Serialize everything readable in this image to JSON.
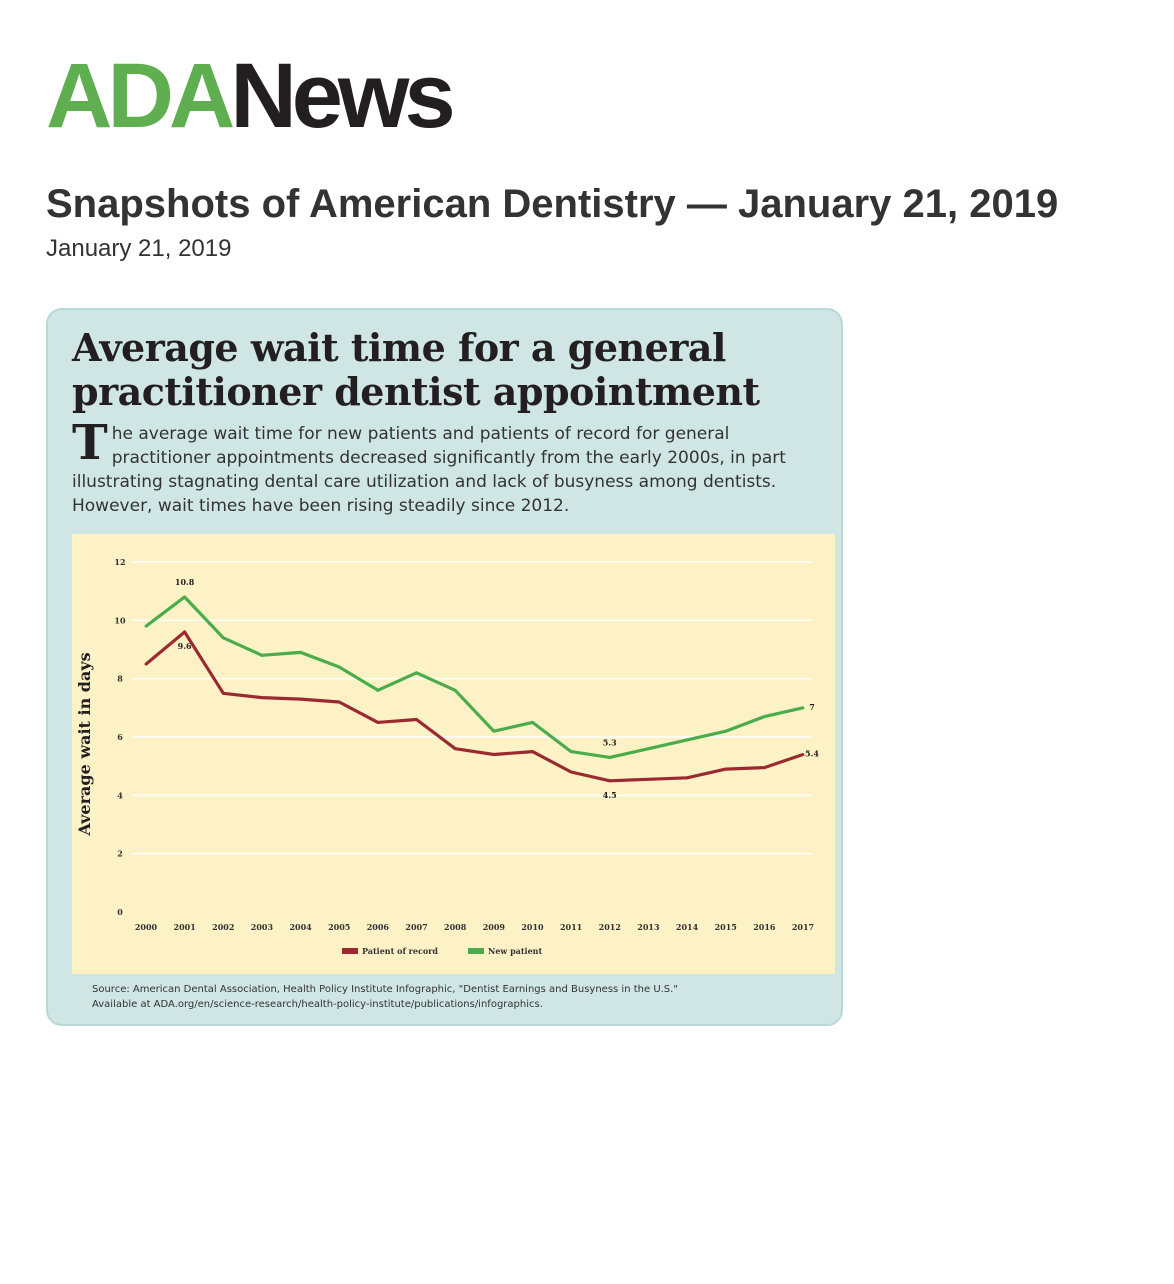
{
  "logo": {
    "part1": "ADA",
    "part2": "News"
  },
  "article": {
    "headline": "Snapshots of American Dentistry — January 21, 2019",
    "date": "January 21, 2019"
  },
  "infographic": {
    "title": "Average wait time for a general practitioner dentist appointment",
    "dropcap": "T",
    "description": "he average wait time for new patients and patients of record for general practitioner appointments decreased significantly from the early 2000s, in part illustrating stagnating dental care utilization and lack of busyness among dentists. However, wait times have been rising steadily since 2012.",
    "source_line1": "Source: American Dental Association, Health Policy Institute Infographic, \"Dentist Earnings and Busyness in the U.S.\"",
    "source_line2": "Available at ADA.org/en/science-research/health-policy-institute/publications/infographics."
  },
  "chart_data": {
    "type": "line",
    "ylabel": "Average wait in days",
    "xlabel": "",
    "ylim": [
      0,
      12
    ],
    "yticks": [
      0,
      2,
      4,
      6,
      8,
      10,
      12
    ],
    "grid": true,
    "legend_position": "bottom",
    "categories": [
      "2000",
      "2001",
      "2002",
      "2003",
      "2004",
      "2005",
      "2006",
      "2007",
      "2008",
      "2009",
      "2010",
      "2011",
      "2012",
      "2013",
      "2014",
      "2015",
      "2016",
      "2017"
    ],
    "series": [
      {
        "name": "Patient of record",
        "color": "#9b2a30",
        "values": [
          8.5,
          9.6,
          7.5,
          7.35,
          7.3,
          7.2,
          6.5,
          6.6,
          5.6,
          5.4,
          5.5,
          4.8,
          4.5,
          4.55,
          4.6,
          4.9,
          4.95,
          5.4
        ]
      },
      {
        "name": "New patient",
        "color": "#4bac4b",
        "values": [
          9.8,
          10.8,
          9.4,
          8.8,
          8.9,
          8.4,
          7.6,
          8.2,
          7.6,
          6.2,
          6.5,
          5.5,
          5.3,
          5.6,
          5.9,
          6.2,
          6.7,
          7.0
        ]
      }
    ],
    "annotations": [
      {
        "text": "10.8",
        "category": "2001",
        "value": 10.8,
        "series": "New patient"
      },
      {
        "text": "9.6",
        "category": "2001",
        "value": 9.6,
        "series": "Patient of record"
      },
      {
        "text": "5.3",
        "category": "2012",
        "value": 5.3,
        "series": "New patient"
      },
      {
        "text": "4.5",
        "category": "2012",
        "value": 4.5,
        "series": "Patient of record"
      },
      {
        "text": "7",
        "category": "2017",
        "value": 7.0,
        "series": "New patient"
      },
      {
        "text": "5.4",
        "category": "2017",
        "value": 5.4,
        "series": "Patient of record"
      }
    ]
  }
}
